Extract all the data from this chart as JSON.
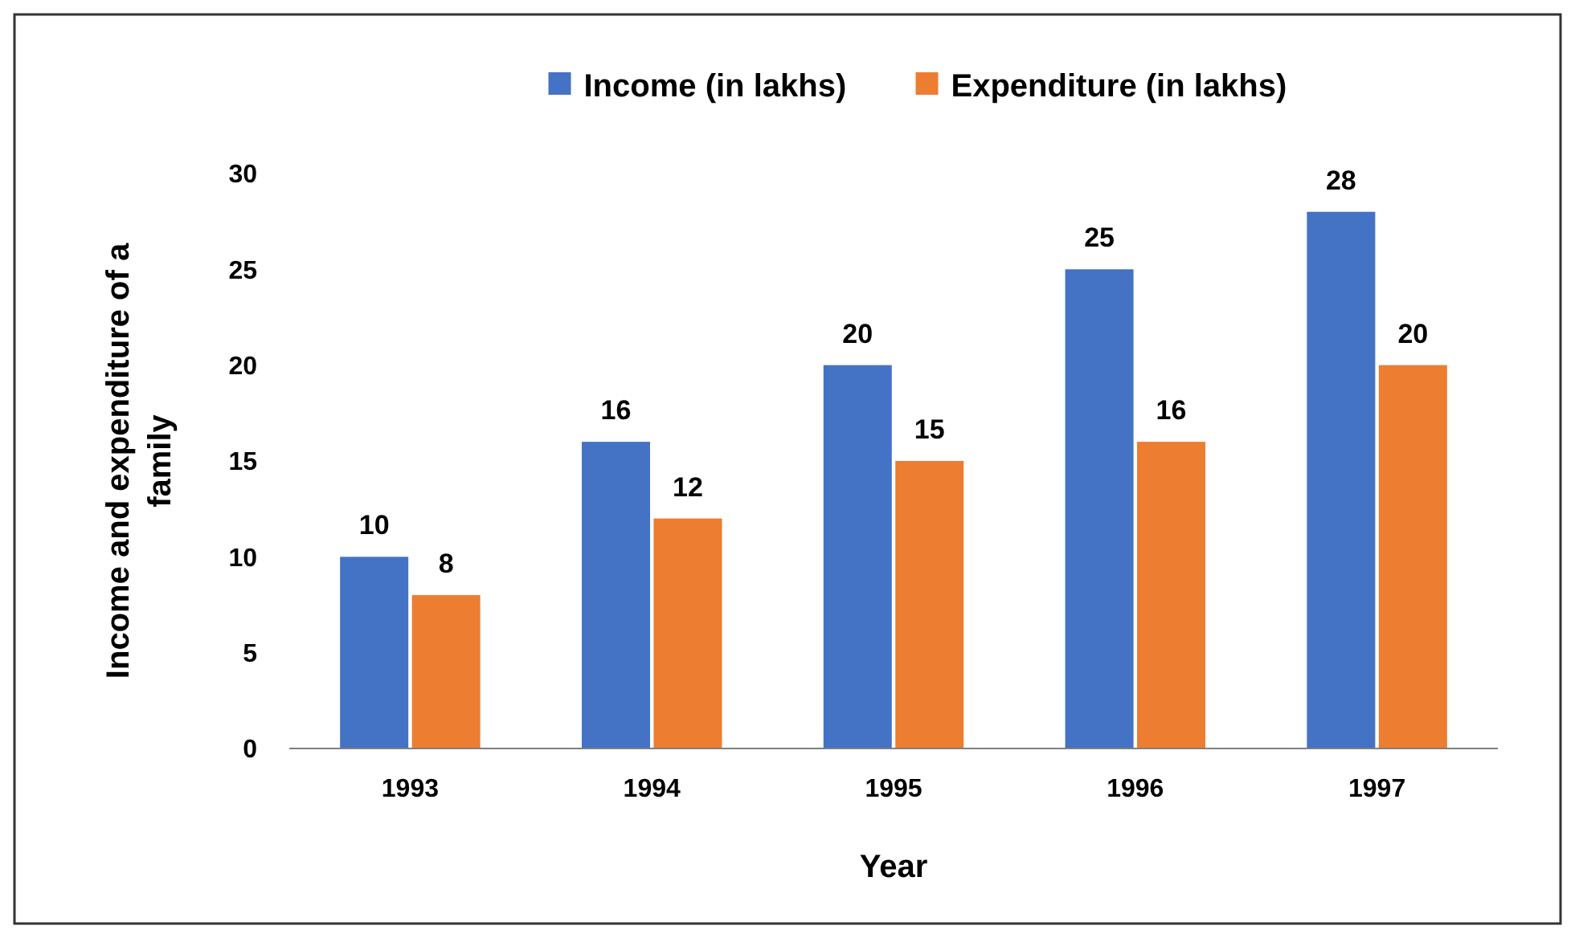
{
  "chart_data": {
    "type": "bar",
    "xlabel": "Year",
    "ylabel": "Income and expenditure of a family",
    "categories": [
      "1993",
      "1994",
      "1995",
      "1996",
      "1997"
    ],
    "series": [
      {
        "name": "Income (in lakhs)",
        "color": "#4472c4",
        "values": [
          10,
          16,
          20,
          25,
          28
        ]
      },
      {
        "name": "Expenditure (in lakhs)",
        "color": "#ed7d31",
        "values": [
          8,
          12,
          15,
          16,
          20
        ]
      }
    ],
    "ylim": [
      0,
      30
    ],
    "yticks": [
      0,
      5,
      10,
      15,
      20,
      25,
      30
    ],
    "grid": false,
    "legend": "top",
    "data_labels": true
  }
}
